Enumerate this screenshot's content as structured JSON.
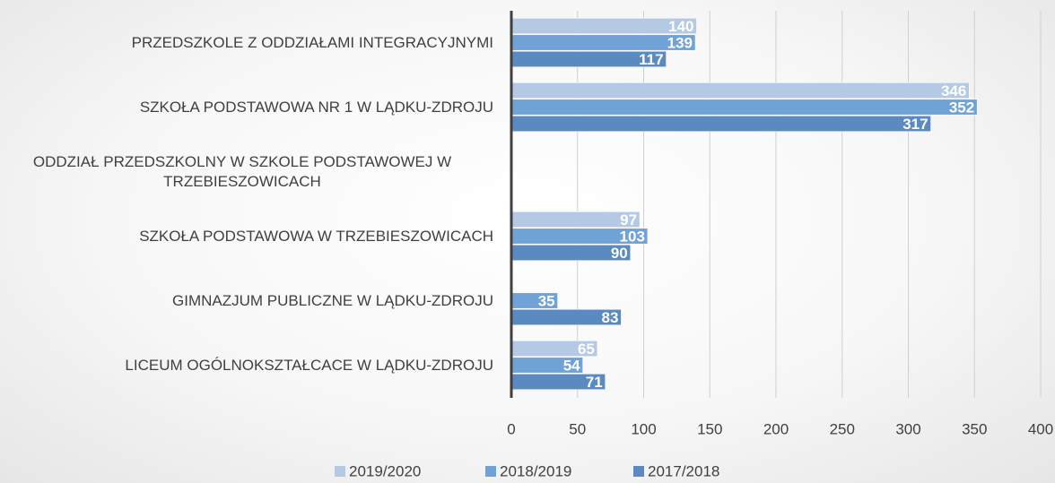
{
  "chart_data": {
    "type": "bar",
    "orientation": "horizontal",
    "categories": [
      "PRZEDSZKOLE Z ODDZIAŁAMI INTEGRACYJNYMI",
      "SZKOŁA PODSTAWOWA NR 1 W LĄDKU-ZDROJU",
      "ODDZIAŁ PRZEDSZKOLNY W SZKOLE PODSTAWOWEJ W TRZEBIESZOWICACH",
      "SZKOŁA PODSTAWOWA W TRZEBIESZOWICACH",
      "GIMNAZJUM PUBLICZNE W LĄDKU-ZDROJU",
      "LICEUM OGÓLNOKSZTAŁCACE W LĄDKU-ZDROJU"
    ],
    "series": [
      {
        "name": "2019/2020",
        "color": "#b4c9e4",
        "values": [
          140,
          346,
          1,
          97,
          null,
          65
        ]
      },
      {
        "name": "2018/2019",
        "color": "#6fa3d8",
        "values": [
          139,
          352,
          1,
          103,
          35,
          54
        ]
      },
      {
        "name": "2017/2018",
        "color": "#5b8ac0",
        "values": [
          117,
          317,
          1,
          90,
          83,
          71
        ]
      }
    ],
    "xlim": [
      0,
      400
    ],
    "xticks": [
      0,
      50,
      100,
      150,
      200,
      250,
      300,
      350,
      400
    ],
    "grid": true,
    "legend": "bottom"
  }
}
